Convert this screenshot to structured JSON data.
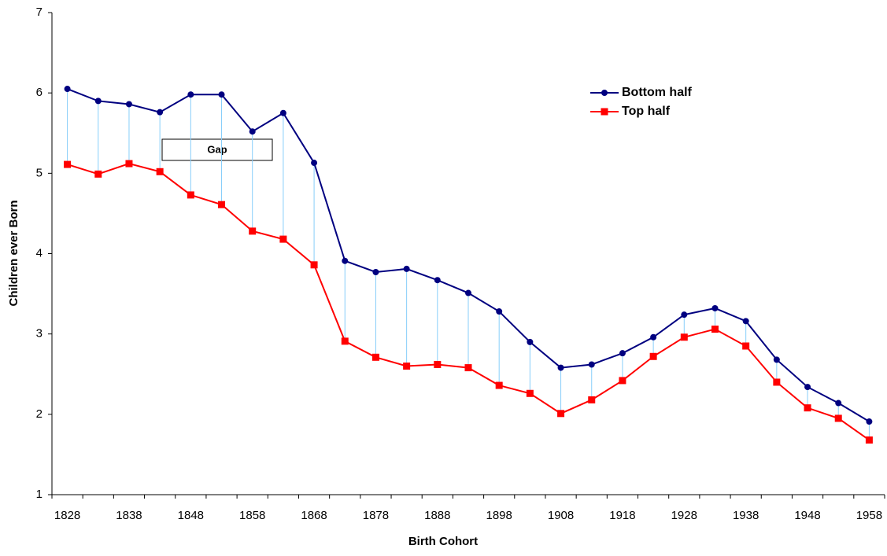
{
  "chart_data": {
    "type": "line",
    "x_label": "Birth Cohort",
    "y_label": "Children ever Born",
    "annotation": "Gap",
    "categories": [
      "1828",
      null,
      "1838",
      null,
      "1848",
      null,
      "1858",
      null,
      "1868",
      null,
      "1878",
      null,
      "1888",
      null,
      "1898",
      null,
      "1908",
      null,
      "1918",
      null,
      "1928",
      null,
      "1938",
      null,
      "1948",
      null,
      "1958"
    ],
    "series": [
      {
        "name": "Bottom half",
        "color": "#000080",
        "marker": "circle",
        "values": [
          6.05,
          5.9,
          5.86,
          5.76,
          5.98,
          5.98,
          5.52,
          5.75,
          5.13,
          3.91,
          3.77,
          3.81,
          3.67,
          3.51,
          3.28,
          2.9,
          2.58,
          2.62,
          2.76,
          2.96,
          3.24,
          3.32,
          3.16,
          2.68,
          2.34,
          2.14,
          1.91
        ]
      },
      {
        "name": "Top half",
        "color": "#ff0000",
        "marker": "square",
        "values": [
          5.11,
          4.99,
          5.12,
          5.02,
          4.73,
          4.61,
          4.28,
          4.18,
          3.86,
          2.91,
          2.71,
          2.6,
          2.62,
          2.58,
          2.36,
          2.26,
          2.01,
          2.18,
          2.42,
          2.72,
          2.96,
          3.06,
          2.85,
          2.4,
          2.08,
          1.95,
          1.68
        ]
      }
    ],
    "drop_line_color": "#87cefa",
    "ylim": [
      1,
      7
    ],
    "yticks": [
      1,
      2,
      3,
      4,
      5,
      6,
      7
    ],
    "grid": false,
    "legend": "upper right"
  }
}
